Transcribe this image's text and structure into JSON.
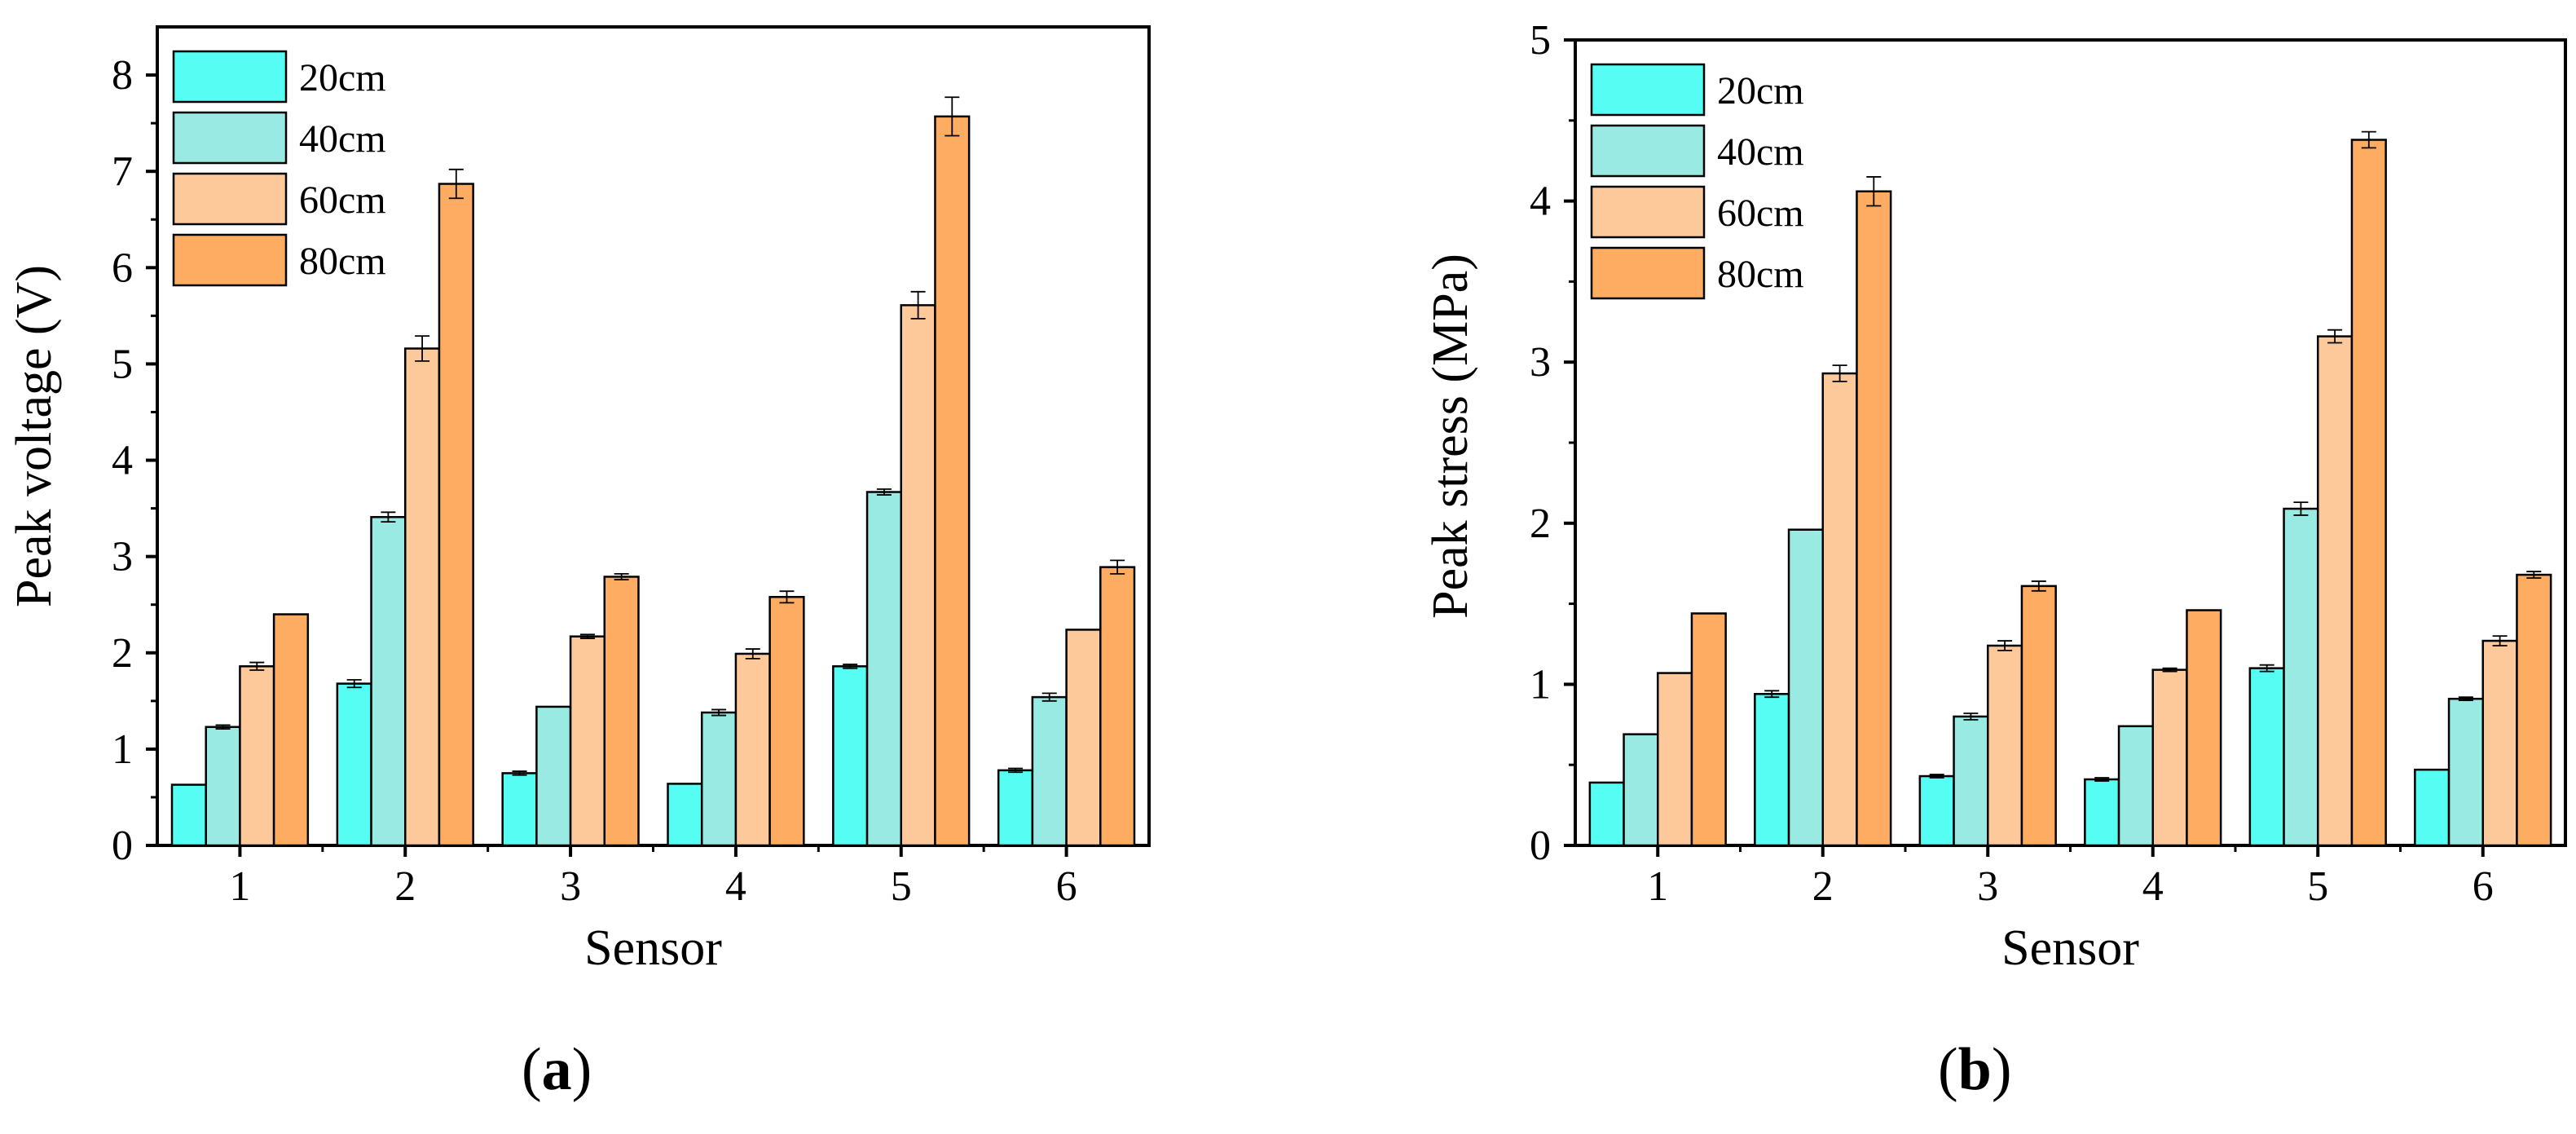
{
  "figure": {
    "panels": [
      {
        "open": "(",
        "letter": "a",
        "close": ")"
      },
      {
        "open": "(",
        "letter": "b",
        "close": ")"
      }
    ]
  },
  "colors": {
    "20cm": "#56FDF2",
    "40cm": "#98EAE3",
    "60cm": "#FDC99B",
    "80cm": "#FDAC62"
  },
  "chart_data": [
    {
      "type": "bar",
      "title": "",
      "xlabel": "Sensor",
      "ylabel": "Peak voltage (V)",
      "categories": [
        "1",
        "2",
        "3",
        "4",
        "5",
        "6"
      ],
      "ylim": [
        0,
        8.5
      ],
      "yticks": [
        "0",
        "1",
        "2",
        "3",
        "4",
        "5",
        "6",
        "7",
        "8"
      ],
      "legend_position": "top-left",
      "series": [
        {
          "name": "20cm",
          "values": [
            0.63,
            1.68,
            0.75,
            0.64,
            1.86,
            0.78
          ],
          "errors": [
            0.0,
            0.04,
            0.02,
            0.0,
            0.02,
            0.02
          ]
        },
        {
          "name": "40cm",
          "values": [
            1.23,
            3.41,
            1.44,
            1.38,
            3.67,
            1.54
          ],
          "errors": [
            0.02,
            0.05,
            0.0,
            0.03,
            0.03,
            0.04
          ]
        },
        {
          "name": "60cm",
          "values": [
            1.86,
            5.16,
            2.17,
            1.99,
            5.61,
            2.24
          ],
          "errors": [
            0.04,
            0.13,
            0.02,
            0.05,
            0.14,
            0.0
          ]
        },
        {
          "name": "80cm",
          "values": [
            2.4,
            6.87,
            2.79,
            2.58,
            7.57,
            2.89
          ],
          "errors": [
            0.0,
            0.15,
            0.03,
            0.06,
            0.2,
            0.07
          ]
        }
      ]
    },
    {
      "type": "bar",
      "title": "",
      "xlabel": "Sensor",
      "ylabel": "Peak stress (MPa)",
      "categories": [
        "1",
        "2",
        "3",
        "4",
        "5",
        "6"
      ],
      "ylim": [
        0,
        5
      ],
      "yticks": [
        "0",
        "1",
        "2",
        "3",
        "4",
        "5"
      ],
      "legend_position": "top-left",
      "series": [
        {
          "name": "20cm",
          "values": [
            0.39,
            0.94,
            0.43,
            0.41,
            1.1,
            0.47
          ],
          "errors": [
            0.0,
            0.02,
            0.01,
            0.01,
            0.02,
            0.0
          ]
        },
        {
          "name": "40cm",
          "values": [
            0.69,
            1.96,
            0.8,
            0.74,
            2.09,
            0.91
          ],
          "errors": [
            0.0,
            0.0,
            0.02,
            0.0,
            0.04,
            0.01
          ]
        },
        {
          "name": "60cm",
          "values": [
            1.07,
            2.93,
            1.24,
            1.09,
            3.16,
            1.27
          ],
          "errors": [
            0.0,
            0.05,
            0.03,
            0.01,
            0.04,
            0.03
          ]
        },
        {
          "name": "80cm",
          "values": [
            1.44,
            4.06,
            1.61,
            1.46,
            4.38,
            1.68
          ],
          "errors": [
            0.0,
            0.09,
            0.03,
            0.0,
            0.05,
            0.02
          ]
        }
      ]
    }
  ]
}
